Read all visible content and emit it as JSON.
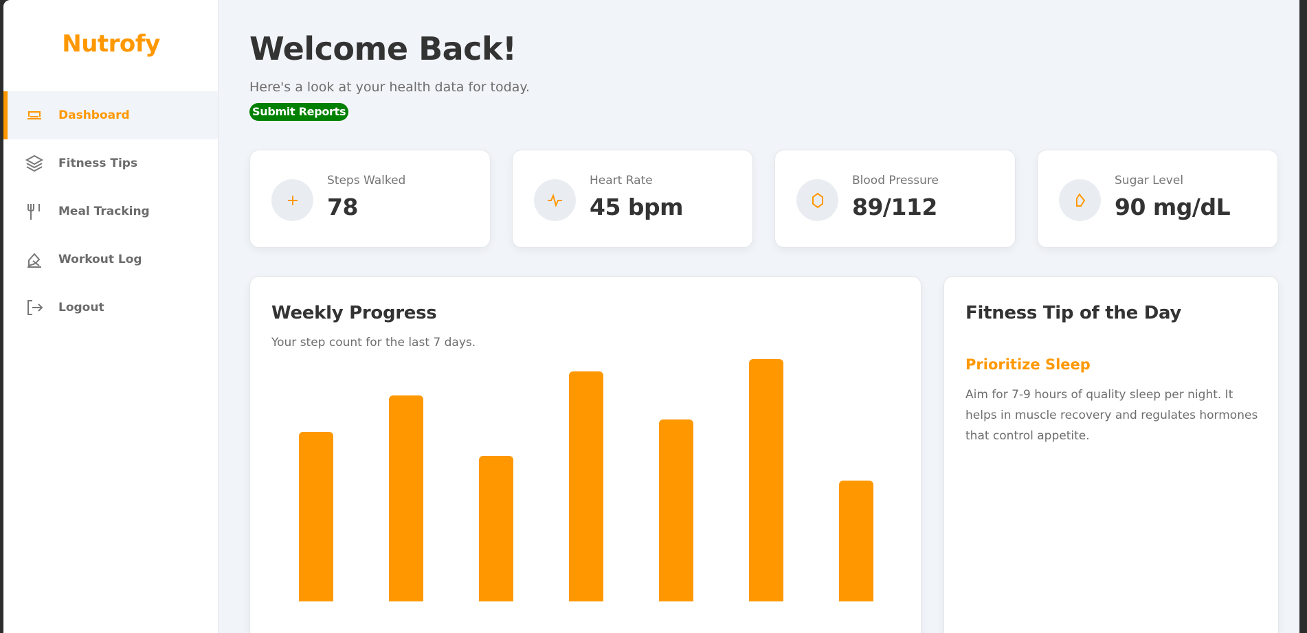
{
  "brand": "Nutrofy",
  "sidebar": {
    "items": [
      {
        "label": "Dashboard",
        "icon": "dashboard-icon",
        "active": true
      },
      {
        "label": "Fitness Tips",
        "icon": "layers-icon"
      },
      {
        "label": "Meal Tracking",
        "icon": "fork-knife-icon"
      },
      {
        "label": "Workout Log",
        "icon": "workout-icon"
      },
      {
        "label": "Logout",
        "icon": "logout-icon"
      }
    ]
  },
  "header": {
    "title": "Welcome Back!",
    "subtitle": "Here's a look at your health data for today.",
    "submit_label": "Submit Reports"
  },
  "stats": [
    {
      "label": "Steps Walked",
      "value": "78",
      "icon": "plus-icon"
    },
    {
      "label": "Heart Rate",
      "value": "45 bpm",
      "icon": "pulse-icon"
    },
    {
      "label": "Blood Pressure",
      "value": "89/112",
      "icon": "hexagon-icon"
    },
    {
      "label": "Sugar Level",
      "value": "90 mg/dL",
      "icon": "drop-icon"
    }
  ],
  "weekly": {
    "title": "Weekly Progress",
    "description": "Your step count for the last 7 days."
  },
  "chart_data": {
    "type": "bar",
    "title": "Weekly Progress",
    "values": [
      7000,
      8500,
      6000,
      9500,
      7500,
      10000,
      5000
    ],
    "ylim": [
      0,
      10000
    ],
    "color": "#ff9800"
  },
  "tip": {
    "heading": "Fitness Tip of the Day",
    "title": "Prioritize Sleep",
    "body": "Aim for 7-9 hours of quality sleep per night. It helps in muscle recovery and regulates hormones that control appetite."
  },
  "colors": {
    "accent": "#ff9800",
    "submit": "#008000",
    "text": "#333333"
  }
}
